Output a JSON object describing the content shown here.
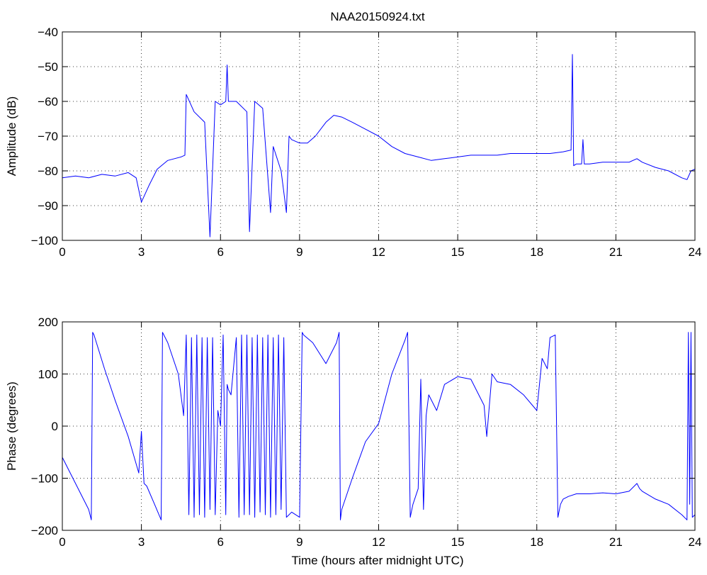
{
  "figure": {
    "title": "NAA20150924.txt",
    "xlabel": "Time (hours after midnight UTC)"
  },
  "colors": {
    "line": "#0000ff",
    "axes": "#000000",
    "grid": "#000000",
    "background": "#ffffff"
  },
  "chart_data": [
    {
      "type": "line",
      "title": "NAA20150924.txt",
      "xlabel": "",
      "ylabel": "Amplitude (dB)",
      "xlim": [
        0,
        24
      ],
      "ylim": [
        -100,
        -40
      ],
      "xticks": [
        0,
        3,
        6,
        9,
        12,
        15,
        18,
        21,
        24
      ],
      "yticks": [
        -100,
        -90,
        -80,
        -70,
        -60,
        -50,
        -40
      ],
      "grid": true,
      "series": [
        {
          "x": [
            0,
            0.5,
            1.0,
            1.5,
            2.0,
            2.5,
            2.8,
            3.0,
            3.3,
            3.6,
            4.0,
            4.5,
            4.65,
            4.7,
            5.0,
            5.4,
            5.6,
            5.8,
            6.0,
            6.2,
            6.25,
            6.3,
            6.6,
            7.0,
            7.1,
            7.3,
            7.6,
            7.9,
            8.0,
            8.3,
            8.5,
            8.6,
            8.7,
            9.0,
            9.3,
            9.6,
            10.0,
            10.3,
            10.6,
            11.0,
            11.5,
            12.0,
            12.5,
            13.0,
            13.5,
            14.0,
            14.5,
            15.0,
            15.5,
            16.0,
            16.5,
            17.0,
            17.5,
            18.0,
            18.5,
            19.0,
            19.3,
            19.35,
            19.4,
            19.5,
            19.7,
            19.75,
            19.8,
            20.0,
            20.5,
            21.0,
            21.5,
            21.8,
            22.0,
            22.5,
            23.0,
            23.5,
            23.7,
            23.85,
            24.0
          ],
          "y": [
            -82,
            -81.5,
            -82,
            -81,
            -81.5,
            -80.5,
            -82,
            -89,
            -84,
            -79.5,
            -77,
            -76,
            -75.5,
            -58,
            -63,
            -66,
            -99,
            -60,
            -61,
            -60,
            -49.5,
            -60,
            -60,
            -63,
            -97.5,
            -60,
            -62,
            -92,
            -73,
            -80,
            -92,
            -70,
            -71,
            -72,
            -72,
            -70,
            -66,
            -64,
            -64.5,
            -66,
            -68,
            -70,
            -73,
            -75,
            -76,
            -77,
            -76.5,
            -76,
            -75.5,
            -75.5,
            -75.5,
            -75,
            -75,
            -75,
            -75,
            -74.5,
            -74,
            -46.5,
            -78.5,
            -78,
            -78,
            -71,
            -78,
            -78,
            -77.5,
            -77.5,
            -77.5,
            -76.5,
            -77.5,
            -79,
            -80,
            -82,
            -82.5,
            -80,
            -79.5
          ]
        }
      ]
    },
    {
      "type": "line",
      "title": "",
      "xlabel": "Time (hours after midnight UTC)",
      "ylabel": "Phase (degrees)",
      "xlim": [
        0,
        24
      ],
      "ylim": [
        -200,
        200
      ],
      "xticks": [
        0,
        3,
        6,
        9,
        12,
        15,
        18,
        21,
        24
      ],
      "yticks": [
        -200,
        -100,
        0,
        100,
        200
      ],
      "grid": true,
      "series": [
        {
          "x": [
            0,
            0.5,
            1.0,
            1.1,
            1.15,
            1.2,
            1.6,
            2.0,
            2.5,
            2.9,
            3.0,
            3.1,
            3.2,
            3.5,
            3.75,
            3.8,
            4.0,
            4.4,
            4.6,
            4.7,
            4.8,
            4.9,
            5.0,
            5.1,
            5.2,
            5.3,
            5.4,
            5.5,
            5.6,
            5.7,
            5.8,
            5.9,
            6.0,
            6.1,
            6.2,
            6.25,
            6.3,
            6.4,
            6.6,
            6.7,
            6.8,
            6.9,
            7.0,
            7.1,
            7.2,
            7.3,
            7.4,
            7.5,
            7.6,
            7.7,
            7.8,
            7.9,
            8.0,
            8.1,
            8.2,
            8.3,
            8.4,
            8.5,
            8.6,
            8.7,
            9.0,
            9.1,
            9.15,
            9.5,
            10.0,
            10.4,
            10.5,
            10.55,
            10.6,
            11.0,
            11.5,
            12.0,
            12.5,
            13.0,
            13.1,
            13.2,
            13.3,
            13.5,
            13.6,
            13.7,
            13.8,
            13.9,
            14.2,
            14.5,
            15.0,
            15.5,
            16.0,
            16.1,
            16.3,
            16.5,
            17.0,
            17.5,
            18.0,
            18.2,
            18.4,
            18.5,
            18.7,
            18.8,
            18.9,
            19.0,
            19.2,
            19.5,
            20.0,
            20.5,
            21.0,
            21.5,
            21.8,
            21.9,
            22.0,
            22.5,
            23.0,
            23.5,
            23.7,
            23.75,
            23.8,
            23.85,
            23.9,
            24.0
          ],
          "y": [
            -60,
            -110,
            -160,
            -180,
            180,
            175,
            110,
            50,
            -20,
            -90,
            -10,
            -110,
            -115,
            -150,
            -180,
            180,
            160,
            100,
            20,
            175,
            -170,
            170,
            -175,
            175,
            -170,
            170,
            -175,
            170,
            -160,
            170,
            -170,
            30,
            0,
            175,
            -170,
            80,
            70,
            60,
            170,
            -175,
            175,
            -170,
            175,
            -170,
            170,
            -175,
            175,
            -165,
            170,
            -170,
            175,
            -175,
            170,
            -170,
            175,
            -160,
            170,
            -175,
            -170,
            -165,
            -175,
            180,
            175,
            160,
            120,
            160,
            180,
            -180,
            -160,
            -100,
            -30,
            5,
            100,
            165,
            180,
            -175,
            -150,
            -120,
            90,
            -160,
            20,
            60,
            30,
            80,
            95,
            90,
            40,
            -20,
            100,
            85,
            80,
            60,
            30,
            130,
            110,
            170,
            175,
            -175,
            -150,
            -140,
            -135,
            -130,
            -130,
            -128,
            -130,
            -125,
            -110,
            -120,
            -125,
            -140,
            -150,
            -170,
            -180,
            180,
            -150,
            180,
            -175,
            -170
          ]
        }
      ]
    }
  ]
}
